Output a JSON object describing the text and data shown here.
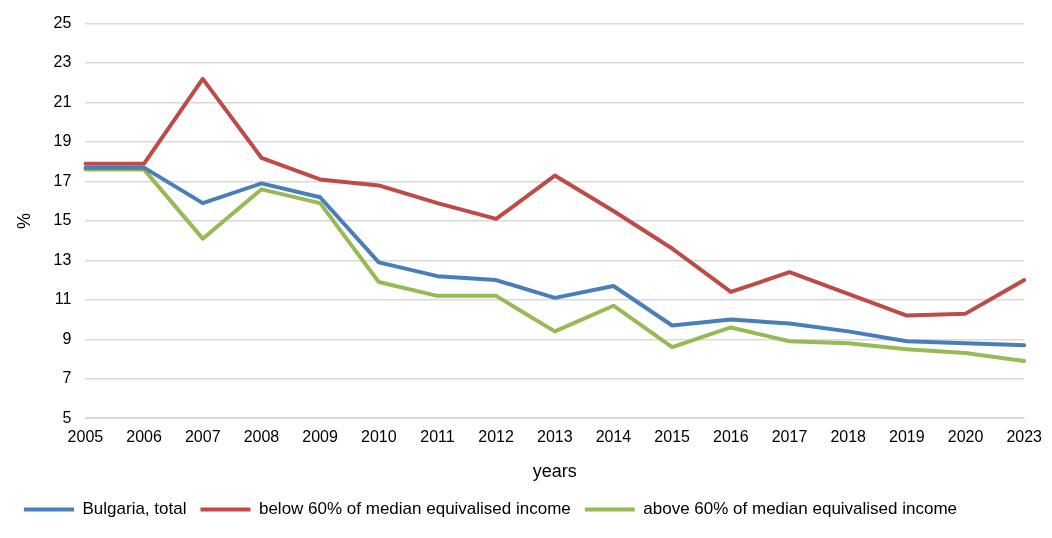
{
  "chart_data": {
    "type": "line",
    "xlabel": "years",
    "ylabel": "%",
    "categories": [
      "2005",
      "2006",
      "2007",
      "2008",
      "2009",
      "2010",
      "2011",
      "2012",
      "2013",
      "2014",
      "2015",
      "2016",
      "2017",
      "2018",
      "2019",
      "2020",
      "2023"
    ],
    "series": [
      {
        "name": "Bulgaria, total",
        "color": "#4a7ebb",
        "values": [
          17.7,
          17.7,
          15.9,
          16.9,
          16.2,
          12.9,
          12.2,
          12.0,
          11.1,
          11.7,
          9.7,
          10.0,
          9.8,
          9.4,
          8.9,
          8.8,
          8.7
        ]
      },
      {
        "name": "below 60% of median equivalised income",
        "color": "#be4b48",
        "values": [
          17.9,
          17.9,
          22.2,
          18.2,
          17.1,
          16.8,
          15.9,
          15.1,
          17.3,
          15.5,
          13.6,
          11.4,
          12.4,
          11.3,
          10.2,
          10.3,
          12.0
        ]
      },
      {
        "name": "above 60% of median equivalised income",
        "color": "#98b954",
        "values": [
          17.6,
          17.6,
          14.1,
          16.6,
          15.9,
          11.9,
          11.2,
          11.2,
          9.4,
          10.7,
          8.6,
          9.6,
          8.9,
          8.8,
          8.5,
          8.3,
          7.9
        ]
      }
    ],
    "ylim": [
      5,
      25
    ],
    "yticks": [
      5,
      7,
      9,
      11,
      13,
      15,
      17,
      19,
      21,
      23,
      25
    ],
    "grid": "y",
    "legend": "bottom",
    "marker": "none",
    "line_style": "solid"
  }
}
